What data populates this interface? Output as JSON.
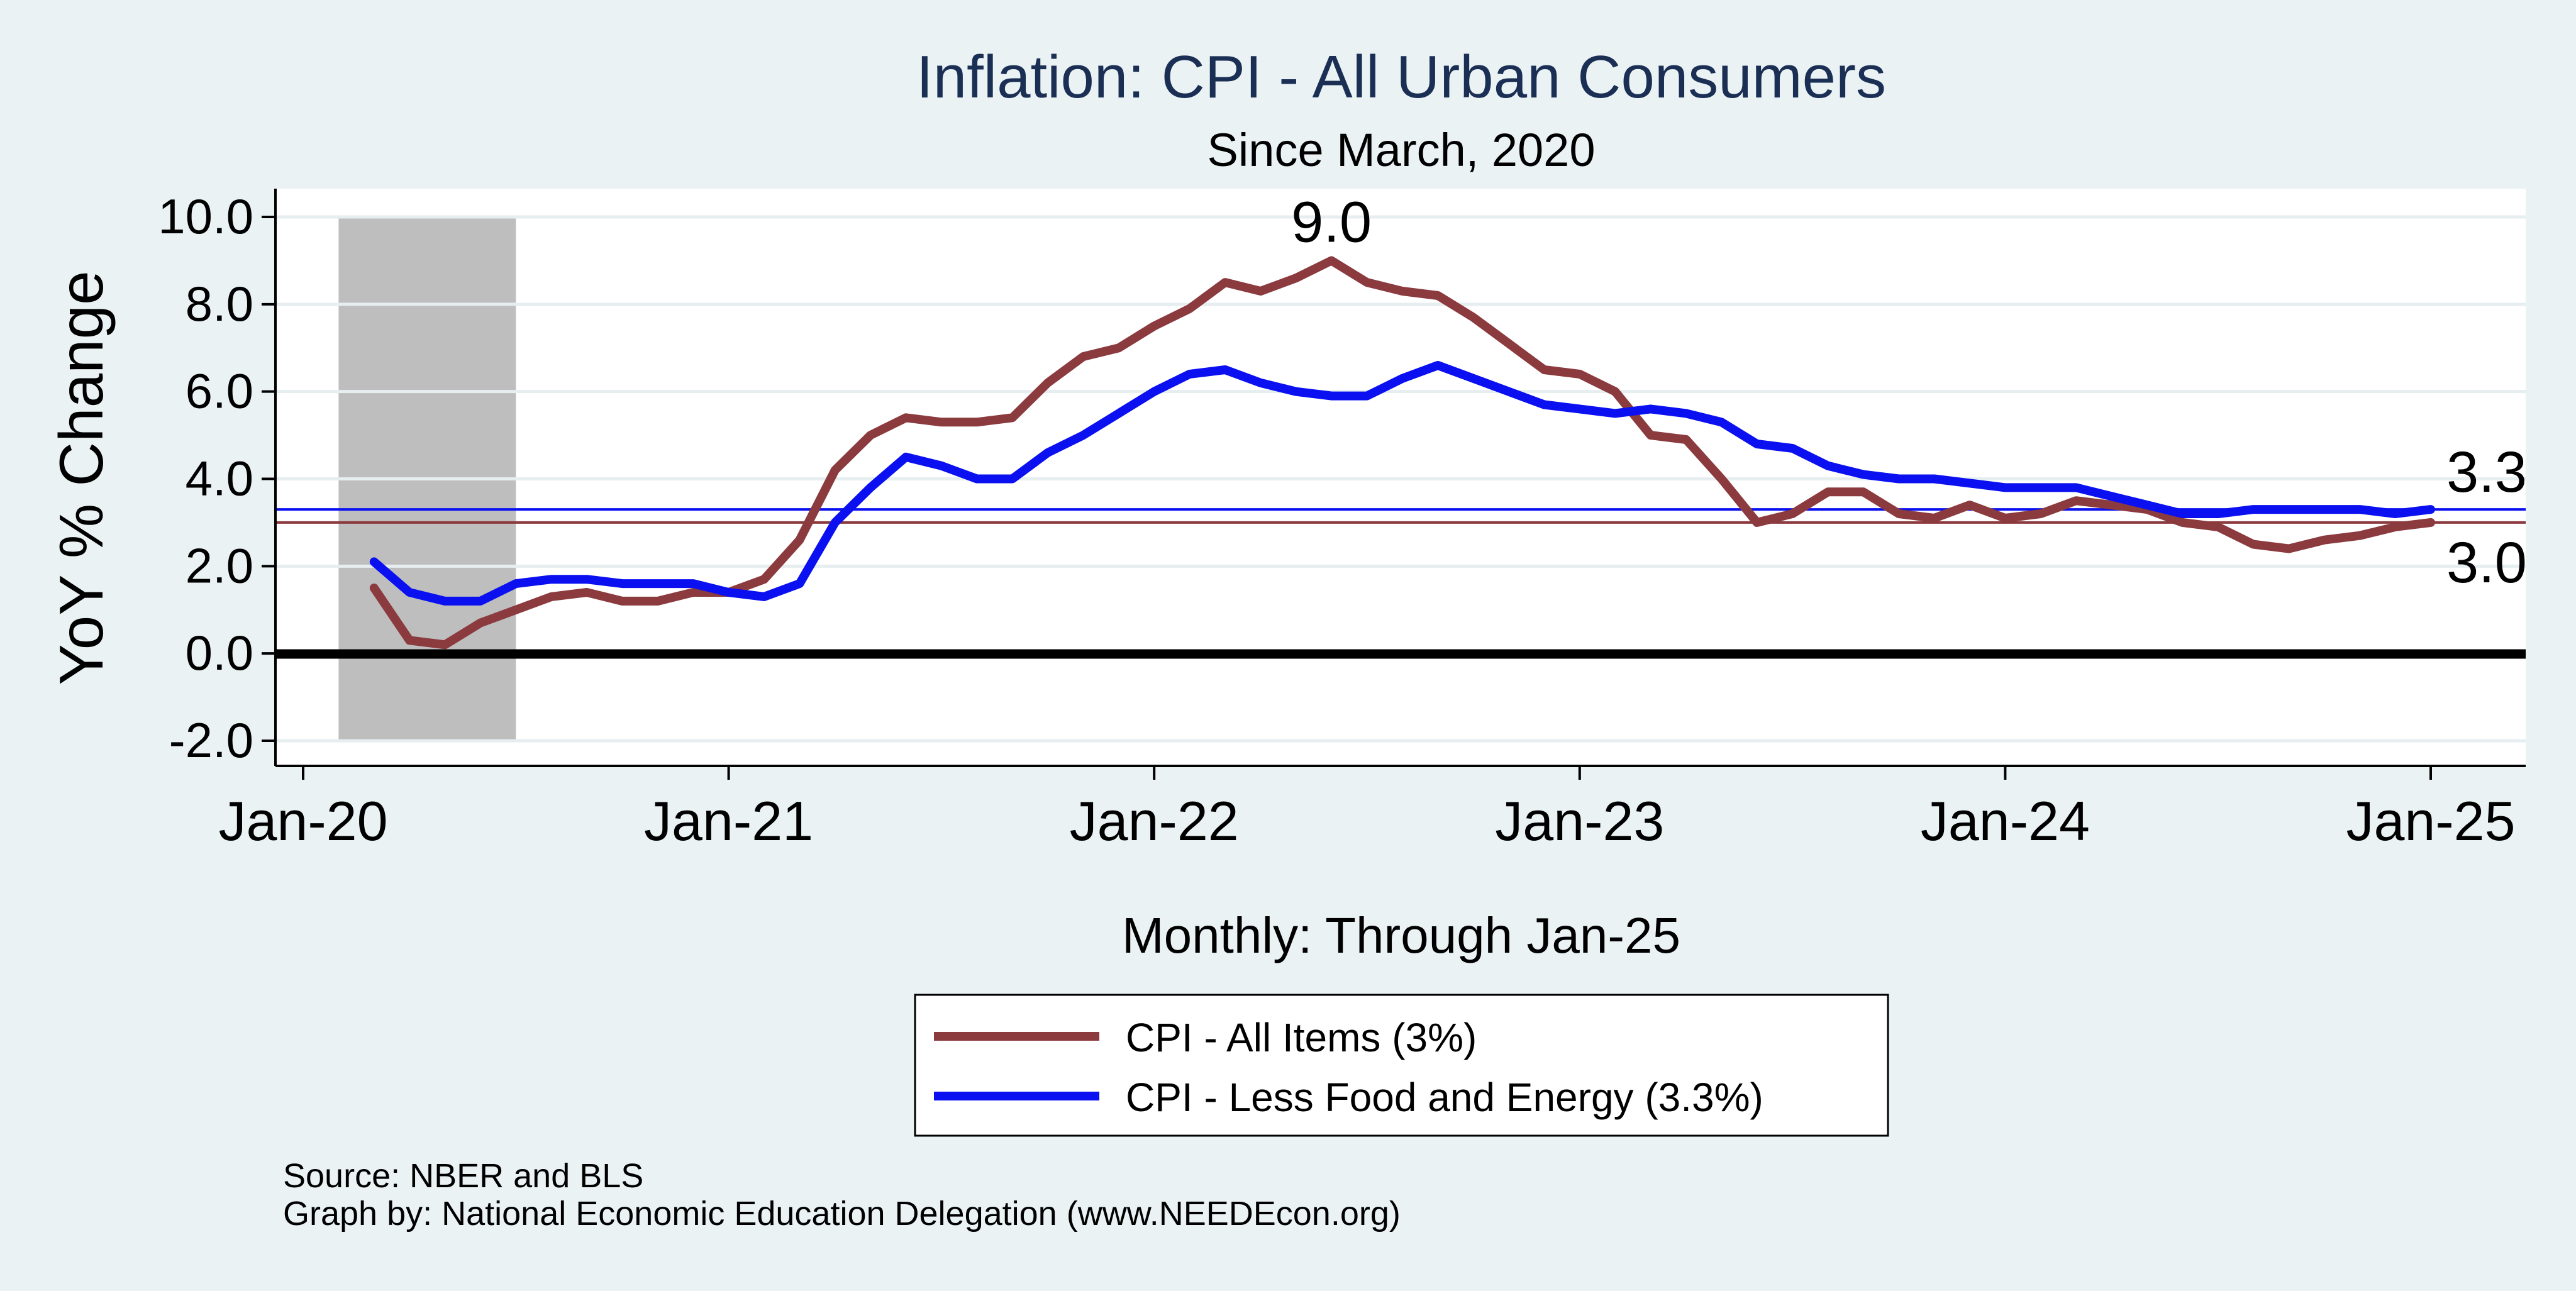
{
  "chart_data": {
    "type": "line",
    "title": "Inflation: CPI - All Urban Consumers",
    "subtitle": "Since March, 2020",
    "ylabel": "YoY % Change",
    "xlabel": "Monthly: Through Jan-25",
    "ylim": [
      -2.0,
      10.0
    ],
    "yticks": [
      "10.0",
      "8.0",
      "6.0",
      "4.0",
      "2.0",
      "0.0",
      "-2.0"
    ],
    "xticks": [
      "Jan-20",
      "Jan-21",
      "Jan-22",
      "Jan-23",
      "Jan-24",
      "Jan-25"
    ],
    "grid": true,
    "zero_line": true,
    "recession": {
      "start": "2020-02",
      "end": "2020-07"
    },
    "series": [
      {
        "name": "CPI - All Items (3%)",
        "color": "#8b3a3e",
        "start": "2020-03",
        "values": [
          1.5,
          0.3,
          0.2,
          0.7,
          1.0,
          1.3,
          1.4,
          1.2,
          1.2,
          1.4,
          1.4,
          1.7,
          2.6,
          4.2,
          5.0,
          5.4,
          5.3,
          5.3,
          5.4,
          6.2,
          6.8,
          7.0,
          7.5,
          7.9,
          8.5,
          8.3,
          8.6,
          9.0,
          8.5,
          8.3,
          8.2,
          7.7,
          7.1,
          6.5,
          6.4,
          6.0,
          5.0,
          4.9,
          4.0,
          3.0,
          3.2,
          3.7,
          3.7,
          3.2,
          3.1,
          3.4,
          3.1,
          3.2,
          3.5,
          3.4,
          3.3,
          3.0,
          2.9,
          2.5,
          2.4,
          2.6,
          2.7,
          2.9,
          3.0
        ],
        "ref_line": 3.0,
        "end_label": "3.0",
        "peak_label": "9.0",
        "peak_value": 9.0
      },
      {
        "name": "CPI - Less Food and Energy (3.3%)",
        "color": "#0a10f0",
        "start": "2020-03",
        "values": [
          2.1,
          1.4,
          1.2,
          1.2,
          1.6,
          1.7,
          1.7,
          1.6,
          1.6,
          1.6,
          1.4,
          1.3,
          1.6,
          3.0,
          3.8,
          4.5,
          4.3,
          4.0,
          4.0,
          4.6,
          5.0,
          5.5,
          6.0,
          6.4,
          6.5,
          6.2,
          6.0,
          5.9,
          5.9,
          6.3,
          6.6,
          6.3,
          6.0,
          5.7,
          5.6,
          5.5,
          5.6,
          5.5,
          5.3,
          4.8,
          4.7,
          4.3,
          4.1,
          4.0,
          4.0,
          3.9,
          3.8,
          3.8,
          3.8,
          3.6,
          3.4,
          3.2,
          3.2,
          3.3,
          3.3,
          3.3,
          3.3,
          3.2,
          3.3
        ],
        "ref_line": 3.3,
        "end_label": "3.3"
      }
    ],
    "legend": {
      "placement": "bottom-center"
    }
  },
  "footer": {
    "source": "Source: NBER and BLS",
    "credit": "Graph by: National Economic Education Delegation (www.NEEDEcon.org)"
  }
}
